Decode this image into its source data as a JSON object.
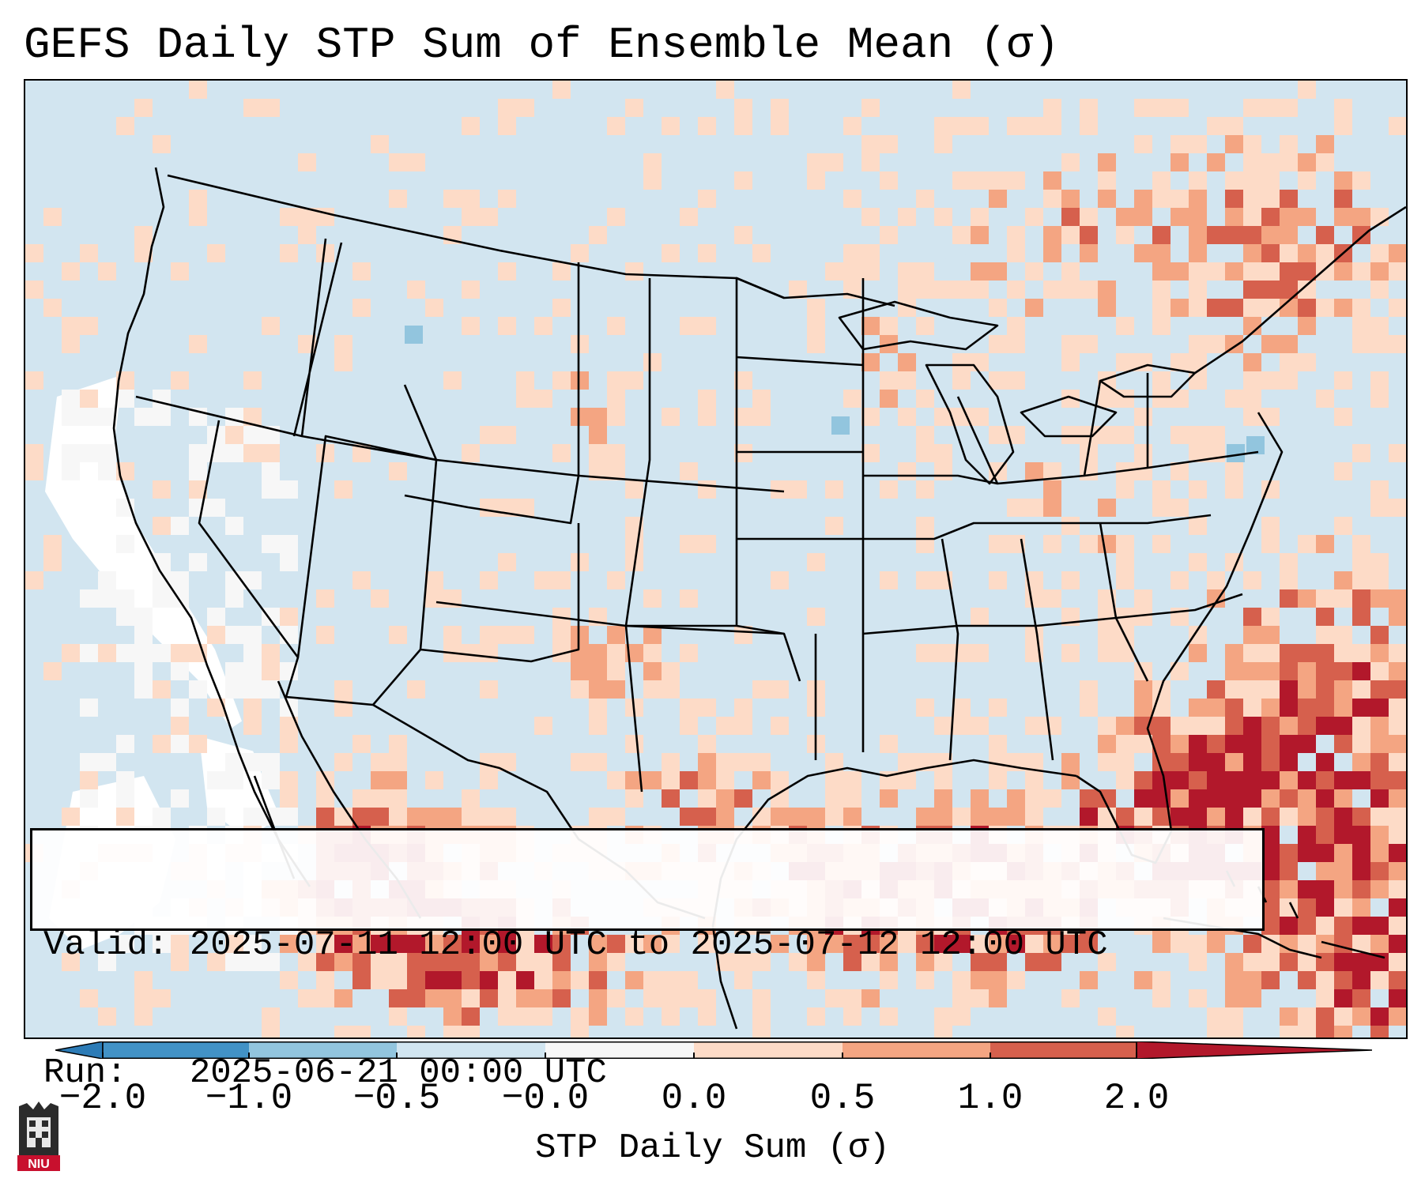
{
  "title": "GEFS Daily STP Sum of Ensemble Mean (σ)",
  "info": {
    "valid_line": "Valid: 2025-07-11 12:00 UTC to 2025-07-12 12:00 UTC",
    "run_line": "Run:   2025-06-21 00:00 UTC"
  },
  "colorbar": {
    "label": "STP Daily Sum (σ)",
    "ticks": [
      "−2.0",
      "−1.0",
      "−0.5",
      "−0.0",
      "0.0",
      "0.5",
      "1.0",
      "2.0"
    ],
    "bin_colors": [
      "#2c7bb6",
      "#4292c6",
      "#92c5de",
      "#d1e5f0",
      "#f7f7f7",
      "#fddbc7",
      "#f4a582",
      "#d6604d",
      "#b2182b"
    ]
  },
  "map": {
    "ocean_color": "#d2e5f0",
    "regions": "Contiguous United States, southern Canada, northern Mexico, Gulf of Mexico, western Atlantic",
    "highest_anomaly_areas": [
      "Gulf of Mexico",
      "Western Atlantic off the Southeast coast",
      "Northern Mexico",
      "Florida"
    ]
  },
  "logo": {
    "text": "NIU",
    "colors": [
      "#2b2b2b",
      "#c8102e"
    ]
  }
}
